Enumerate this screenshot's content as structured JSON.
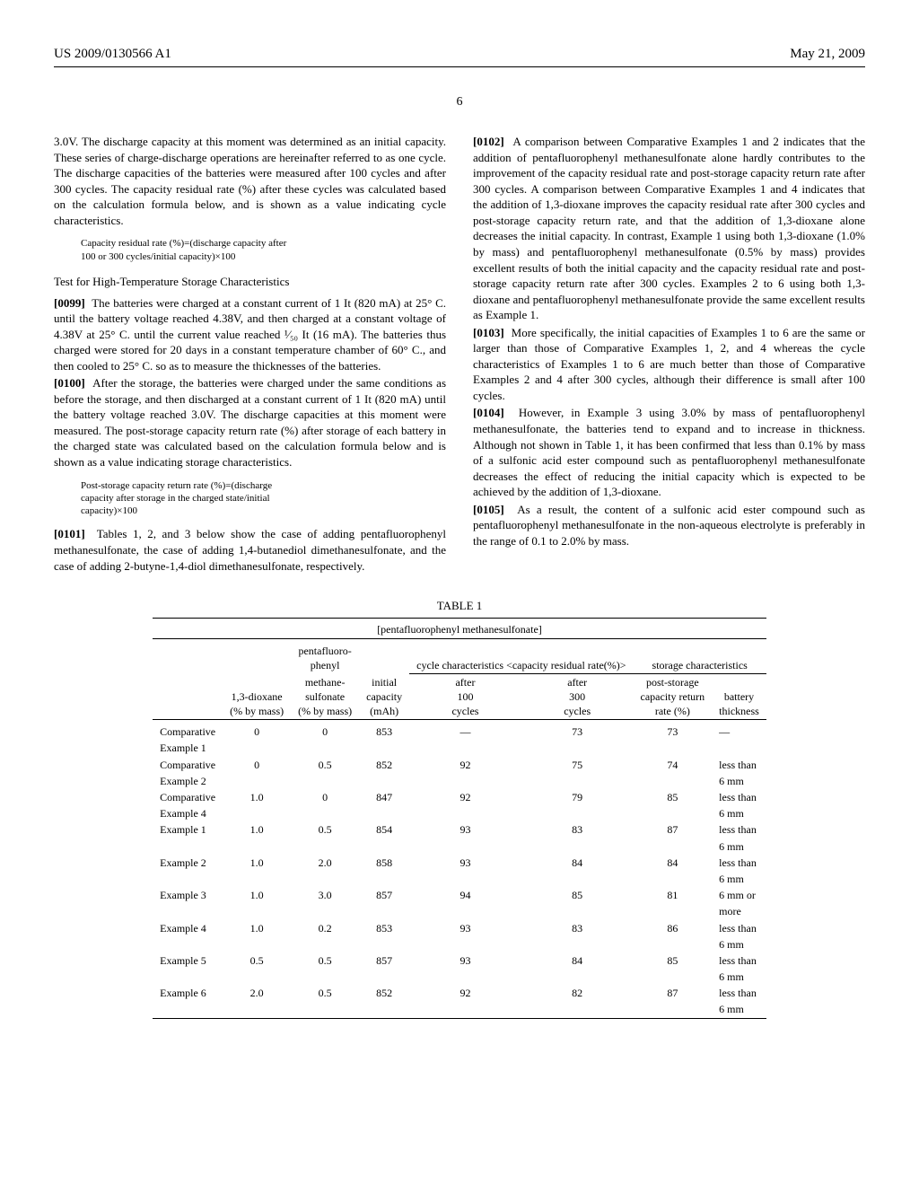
{
  "header": {
    "left": "US 2009/0130566 A1",
    "right": "May 21, 2009"
  },
  "page_number": "6",
  "col1": {
    "p0": "3.0V. The discharge capacity at this moment was determined as an initial capacity. These series of charge-discharge operations are hereinafter referred to as one cycle. The discharge capacities of the batteries were measured after 100 cycles and after 300 cycles. The capacity residual rate (%) after these cycles was calculated based on the calculation formula below, and is shown as a value indicating cycle characteristics.",
    "formula1a": "Capacity residual rate (%)=(discharge capacity after",
    "formula1b": "100 or 300 cycles/initial capacity)×100",
    "subhead1": "Test for High-Temperature Storage Characteristics",
    "p99_num": "[0099]",
    "p99": "The batteries were charged at a constant current of 1 It (820 mA) at 25° C. until the battery voltage reached 4.38V, and then charged at a constant voltage of 4.38V at 25° C. until the current value reached ¹⁄₅₀ It (16 mA). The batteries thus charged were stored for 20 days in a constant temperature chamber of 60° C., and then cooled to 25° C. so as to measure the thicknesses of the batteries.",
    "p100_num": "[0100]",
    "p100": "After the storage, the batteries were charged under the same conditions as before the storage, and then discharged at a constant current of 1 It (820 mA) until the battery voltage reached 3.0V. The discharge capacities at this moment were measured. The post-storage capacity return rate (%) after storage of each battery in the charged state was calculated based on the calculation formula below and is shown as a value indicating storage characteristics.",
    "formula2a": "Post-storage capacity return rate (%)=(discharge",
    "formula2b": "capacity after storage in the charged state/initial",
    "formula2c": "capacity)×100",
    "p101_num": "[0101]",
    "p101": "Tables 1, 2, and 3 below show the case of adding pentafluorophenyl methanesulfonate, the case of adding 1,4-butanediol dimethanesulfonate, and the case of adding 2-butyne-1,4-diol dimethanesulfonate, respectively."
  },
  "col2": {
    "p102_num": "[0102]",
    "p102": "A comparison between Comparative Examples 1 and 2 indicates that the addition of pentafluorophenyl methanesulfonate alone hardly contributes to the improvement of the capacity residual rate and post-storage capacity return rate after 300 cycles. A comparison between Comparative Examples 1 and 4 indicates that the addition of 1,3-dioxane improves the capacity residual rate after 300 cycles and post-storage capacity return rate, and that the addition of 1,3-dioxane alone decreases the initial capacity. In contrast, Example 1 using both 1,3-dioxane (1.0% by mass) and pentafluorophenyl methanesulfonate (0.5% by mass) provides excellent results of both the initial capacity and the capacity residual rate and post-storage capacity return rate after 300 cycles. Examples 2 to 6 using both 1,3-dioxane and pentafluorophenyl methanesulfonate provide the same excellent results as Example 1.",
    "p103_num": "[0103]",
    "p103": "More specifically, the initial capacities of Examples 1 to 6 are the same or larger than those of Comparative Examples 1, 2, and 4 whereas the cycle characteristics of Examples 1 to 6 are much better than those of Comparative Examples 2 and 4 after 300 cycles, although their difference is small after 100 cycles.",
    "p104_num": "[0104]",
    "p104": "However, in Example 3 using 3.0% by mass of pentafluorophenyl methanesulfonate, the batteries tend to expand and to increase in thickness. Although not shown in Table 1, it has been confirmed that less than 0.1% by mass of a sulfonic acid ester compound such as pentafluorophenyl methanesulfonate decreases the effect of reducing the initial capacity which is expected to be achieved by the addition of 1,3-dioxane.",
    "p105_num": "[0105]",
    "p105": "As a result, the content of a sulfonic acid ester compound such as pentafluorophenyl methanesulfonate in the non-aqueous electrolyte is preferably in the range of 0.1 to 2.0% by mass."
  },
  "table": {
    "title": "TABLE 1",
    "caption": "[pentafluorophenyl methanesulfonate]",
    "header_groups": {
      "cycle": "cycle characteristics <capacity residual rate(%)>",
      "storage": "storage characteristics"
    },
    "columns": {
      "c1": "",
      "c2a": "1,3-dioxane",
      "c2b": "(% by mass)",
      "c3a": "pentafluoro-",
      "c3b": "phenyl",
      "c3c": "methane-",
      "c3d": "sulfonate",
      "c3e": "(% by mass)",
      "c4a": "initial",
      "c4b": "capacity",
      "c4c": "(mAh)",
      "c5a": "after",
      "c5b": "100",
      "c5c": "cycles",
      "c6a": "after",
      "c6b": "300",
      "c6c": "cycles",
      "c7a": "post-storage",
      "c7b": "capacity return",
      "c7c": "rate (%)",
      "c8a": "battery",
      "c8b": "thickness"
    },
    "rows": [
      {
        "name": "Comparative Example 1",
        "d": "0",
        "p": "0",
        "cap": "853",
        "a100": "—",
        "a300": "73",
        "ret": "73",
        "th": "—"
      },
      {
        "name": "Comparative Example 2",
        "d": "0",
        "p": "0.5",
        "cap": "852",
        "a100": "92",
        "a300": "75",
        "ret": "74",
        "th": "less than 6 mm"
      },
      {
        "name": "Comparative Example 4",
        "d": "1.0",
        "p": "0",
        "cap": "847",
        "a100": "92",
        "a300": "79",
        "ret": "85",
        "th": "less than 6 mm"
      },
      {
        "name": "Example 1",
        "d": "1.0",
        "p": "0.5",
        "cap": "854",
        "a100": "93",
        "a300": "83",
        "ret": "87",
        "th": "less than 6 mm"
      },
      {
        "name": "Example 2",
        "d": "1.0",
        "p": "2.0",
        "cap": "858",
        "a100": "93",
        "a300": "84",
        "ret": "84",
        "th": "less than 6 mm"
      },
      {
        "name": "Example 3",
        "d": "1.0",
        "p": "3.0",
        "cap": "857",
        "a100": "94",
        "a300": "85",
        "ret": "81",
        "th": "6 mm or more"
      },
      {
        "name": "Example 4",
        "d": "1.0",
        "p": "0.2",
        "cap": "853",
        "a100": "93",
        "a300": "83",
        "ret": "86",
        "th": "less than 6 mm"
      },
      {
        "name": "Example 5",
        "d": "0.5",
        "p": "0.5",
        "cap": "857",
        "a100": "93",
        "a300": "84",
        "ret": "85",
        "th": "less than 6 mm"
      },
      {
        "name": "Example 6",
        "d": "2.0",
        "p": "0.5",
        "cap": "852",
        "a100": "92",
        "a300": "82",
        "ret": "87",
        "th": "less than 6 mm"
      }
    ]
  }
}
